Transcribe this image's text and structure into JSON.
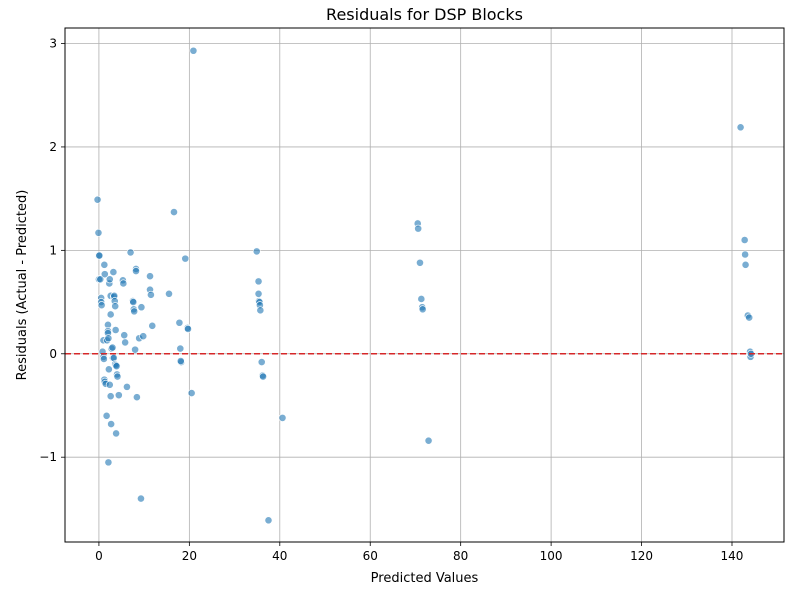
{
  "chart_data": {
    "type": "scatter",
    "title": "Residuals for DSP Blocks",
    "xlabel": "Predicted Values",
    "ylabel": "Residuals (Actual - Predicted)",
    "xlim": [
      -7.5,
      151.5
    ],
    "ylim": [
      -1.82,
      3.15
    ],
    "xticks": [
      0,
      20,
      40,
      60,
      80,
      100,
      120,
      140
    ],
    "yticks": [
      -1,
      0,
      1,
      2,
      3
    ],
    "grid": true,
    "reference_line": {
      "y": 0,
      "color": "#d62728",
      "style": "dashed"
    },
    "point_color": "#1f77b4",
    "points": [
      [
        -0.3,
        1.49
      ],
      [
        -0.1,
        1.17
      ],
      [
        0.0,
        0.95
      ],
      [
        0.1,
        0.95
      ],
      [
        0.0,
        0.72
      ],
      [
        0.3,
        0.72
      ],
      [
        0.5,
        0.54
      ],
      [
        0.5,
        0.5
      ],
      [
        0.6,
        0.47
      ],
      [
        1.0,
        0.13
      ],
      [
        0.8,
        0.02
      ],
      [
        1.0,
        -0.03
      ],
      [
        1.1,
        -0.05
      ],
      [
        1.2,
        -0.25
      ],
      [
        1.3,
        -0.27
      ],
      [
        1.5,
        -0.29
      ],
      [
        1.7,
        -0.6
      ],
      [
        1.2,
        0.86
      ],
      [
        1.3,
        0.77
      ],
      [
        2.0,
        0.28
      ],
      [
        2.0,
        0.22
      ],
      [
        2.0,
        0.2
      ],
      [
        1.8,
        0.13
      ],
      [
        2.1,
        0.15
      ],
      [
        2.2,
        -0.15
      ],
      [
        2.4,
        -0.3
      ],
      [
        2.1,
        -1.05
      ],
      [
        2.3,
        0.68
      ],
      [
        2.4,
        0.72
      ],
      [
        2.6,
        0.56
      ],
      [
        2.6,
        0.38
      ],
      [
        2.6,
        -0.41
      ],
      [
        2.7,
        -0.68
      ],
      [
        2.8,
        0.05
      ],
      [
        3.0,
        0.06
      ],
      [
        3.1,
        -0.04
      ],
      [
        3.3,
        -0.04
      ],
      [
        3.2,
        0.79
      ],
      [
        3.3,
        0.55
      ],
      [
        3.4,
        0.56
      ],
      [
        3.5,
        0.51
      ],
      [
        3.6,
        0.46
      ],
      [
        3.7,
        0.23
      ],
      [
        3.6,
        -0.1
      ],
      [
        3.8,
        -0.11
      ],
      [
        3.9,
        -0.12
      ],
      [
        4.0,
        -0.2
      ],
      [
        4.1,
        -0.22
      ],
      [
        3.8,
        -0.77
      ],
      [
        4.4,
        -0.4
      ],
      [
        5.3,
        0.71
      ],
      [
        5.4,
        0.68
      ],
      [
        5.6,
        0.18
      ],
      [
        5.8,
        0.11
      ],
      [
        6.2,
        -0.32
      ],
      [
        7.0,
        0.98
      ],
      [
        7.5,
        0.51
      ],
      [
        7.6,
        0.5
      ],
      [
        7.7,
        0.43
      ],
      [
        7.8,
        0.41
      ],
      [
        8.0,
        0.04
      ],
      [
        8.2,
        0.82
      ],
      [
        8.2,
        0.8
      ],
      [
        8.4,
        -0.42
      ],
      [
        8.9,
        0.15
      ],
      [
        9.4,
        0.45
      ],
      [
        9.8,
        0.17
      ],
      [
        9.3,
        -1.4
      ],
      [
        11.3,
        0.75
      ],
      [
        11.3,
        0.62
      ],
      [
        11.5,
        0.57
      ],
      [
        11.8,
        0.27
      ],
      [
        15.5,
        0.58
      ],
      [
        16.6,
        1.37
      ],
      [
        17.8,
        0.3
      ],
      [
        18.0,
        0.05
      ],
      [
        18.2,
        -0.08
      ],
      [
        18.1,
        -0.07
      ],
      [
        19.1,
        0.92
      ],
      [
        19.6,
        0.25
      ],
      [
        19.7,
        0.24
      ],
      [
        20.5,
        -0.38
      ],
      [
        20.9,
        2.93
      ],
      [
        34.9,
        0.99
      ],
      [
        35.3,
        0.7
      ],
      [
        35.3,
        0.58
      ],
      [
        35.4,
        0.51
      ],
      [
        35.5,
        0.5
      ],
      [
        35.6,
        0.47
      ],
      [
        35.7,
        0.42
      ],
      [
        36.0,
        -0.08
      ],
      [
        36.2,
        -0.21
      ],
      [
        36.3,
        -0.22
      ],
      [
        37.5,
        -1.61
      ],
      [
        40.6,
        -0.62
      ],
      [
        70.5,
        1.26
      ],
      [
        70.6,
        1.21
      ],
      [
        71.0,
        0.88
      ],
      [
        71.3,
        0.53
      ],
      [
        71.5,
        0.45
      ],
      [
        71.6,
        0.43
      ],
      [
        72.9,
        -0.84
      ],
      [
        141.9,
        2.19
      ],
      [
        142.8,
        1.1
      ],
      [
        142.9,
        0.96
      ],
      [
        143.0,
        0.86
      ],
      [
        143.5,
        0.37
      ],
      [
        143.8,
        0.35
      ],
      [
        144.0,
        0.02
      ],
      [
        144.1,
        -0.03
      ],
      [
        144.2,
        0.0
      ]
    ]
  }
}
